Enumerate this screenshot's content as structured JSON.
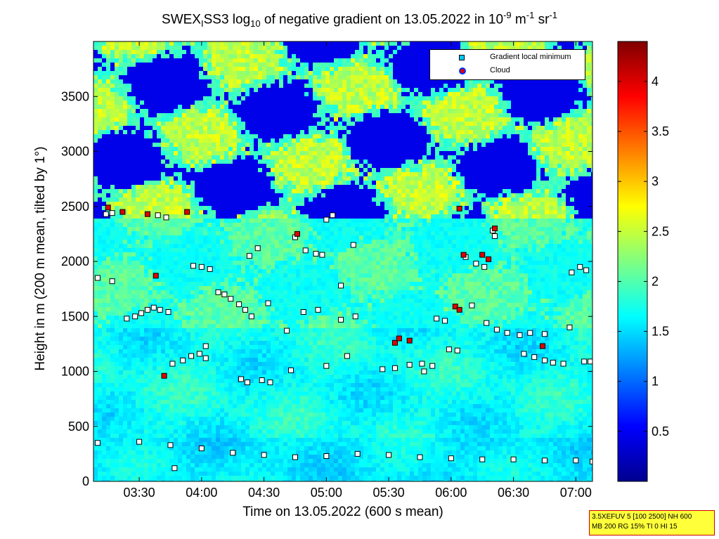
{
  "title": {
    "prefix": "SWEX",
    "sub1": "I",
    "mid": "SS3 log",
    "sub2": "10",
    "text": " of negative gradient on 13.05.2022 in 10",
    "sup1": "-9",
    "unit1": " m",
    "sup2": "-1",
    "unit2": " sr",
    "sup3": "-1"
  },
  "xlabel": "Time on 13.05.2022 (600 s mean)",
  "ylabel": "Height in m (200 m mean, tilted by 1°)",
  "legend": {
    "items": [
      {
        "label": "Gradient local minimum",
        "color": "#00c8ff"
      },
      {
        "label": "Cloud",
        "color": "#e00000"
      }
    ]
  },
  "infobox": {
    "line1": "3.5XEFUV 5 [100 2500] NH 600",
    "line2": "MB 200 RG 15% TI 0 HI 15"
  },
  "colors": {
    "background_field": "#0a1a8c",
    "colormap": [
      "#00008f",
      "#0000ff",
      "#0080ff",
      "#00ffff",
      "#80ff80",
      "#ffff00",
      "#ff8000",
      "#ff0000",
      "#800000"
    ]
  },
  "chart_data": {
    "type": "heatmap",
    "x": {
      "unit": "time",
      "min": "03:08",
      "max": "07:08",
      "ticks": [
        "03:30",
        "04:00",
        "04:30",
        "05:00",
        "05:30",
        "06:00",
        "06:30",
        "07:00"
      ]
    },
    "y": {
      "min": 0,
      "max": 4000,
      "ticks": [
        "0",
        "500",
        "1000",
        "1500",
        "2000",
        "2500",
        "3000",
        "3500"
      ]
    },
    "colorbar": {
      "min": 0,
      "max": 4.4,
      "ticks": [
        "0.5",
        "1",
        "1.5",
        "2",
        "2.5",
        "3",
        "3.5",
        "4"
      ]
    },
    "series": [
      {
        "name": "Gradient local minimum",
        "points": [
          [
            "03:10",
            1850
          ],
          [
            "03:17",
            1820
          ],
          [
            "03:14",
            2430
          ],
          [
            "03:17",
            2440
          ],
          [
            "03:24",
            1480
          ],
          [
            "03:28",
            1500
          ],
          [
            "03:31",
            1530
          ],
          [
            "03:34",
            1560
          ],
          [
            "03:37",
            1580
          ],
          [
            "03:40",
            1560
          ],
          [
            "03:44",
            1540
          ],
          [
            "03:39",
            2420
          ],
          [
            "03:43",
            2400
          ],
          [
            "03:46",
            1070
          ],
          [
            "03:51",
            1100
          ],
          [
            "03:55",
            1140
          ],
          [
            "03:59",
            1160
          ],
          [
            "04:02",
            1120
          ],
          [
            "03:56",
            1960
          ],
          [
            "04:00",
            1950
          ],
          [
            "04:04",
            1930
          ],
          [
            "04:02",
            1230
          ],
          [
            "04:08",
            1720
          ],
          [
            "04:11",
            1700
          ],
          [
            "04:14",
            1660
          ],
          [
            "04:18",
            1610
          ],
          [
            "04:21",
            1560
          ],
          [
            "04:24",
            1500
          ],
          [
            "04:19",
            930
          ],
          [
            "04:22",
            900
          ],
          [
            "04:29",
            920
          ],
          [
            "04:33",
            900
          ],
          [
            "04:23",
            2050
          ],
          [
            "04:27",
            2120
          ],
          [
            "04:32",
            1620
          ],
          [
            "04:45",
            2220
          ],
          [
            "04:50",
            2100
          ],
          [
            "04:55",
            2070
          ],
          [
            "04:58",
            2060
          ],
          [
            "04:41",
            1370
          ],
          [
            "04:49",
            1540
          ],
          [
            "04:56",
            1560
          ],
          [
            "05:00",
            2380
          ],
          [
            "05:03",
            2420
          ],
          [
            "05:07",
            1470
          ],
          [
            "05:14",
            1500
          ],
          [
            "05:07",
            1780
          ],
          [
            "05:13",
            2150
          ],
          [
            "04:43",
            1010
          ],
          [
            "05:00",
            1050
          ],
          [
            "05:10",
            1140
          ],
          [
            "05:27",
            1020
          ],
          [
            "05:33",
            1030
          ],
          [
            "05:40",
            1060
          ],
          [
            "05:46",
            1070
          ],
          [
            "05:51",
            1050
          ],
          [
            "05:47",
            1000
          ],
          [
            "05:53",
            1480
          ],
          [
            "05:57",
            1460
          ],
          [
            "05:59",
            1200
          ],
          [
            "06:03",
            1190
          ],
          [
            "06:07",
            2040
          ],
          [
            "06:12",
            1980
          ],
          [
            "06:16",
            1950
          ],
          [
            "06:20",
            2280
          ],
          [
            "06:21",
            2230
          ],
          [
            "06:10",
            1600
          ],
          [
            "06:17",
            1440
          ],
          [
            "06:22",
            1380
          ],
          [
            "06:27",
            1350
          ],
          [
            "06:33",
            1330
          ],
          [
            "06:35",
            1160
          ],
          [
            "06:40",
            1130
          ],
          [
            "06:45",
            1100
          ],
          [
            "06:49",
            1080
          ],
          [
            "06:54",
            1070
          ],
          [
            "06:38",
            1350
          ],
          [
            "06:45",
            1340
          ],
          [
            "06:57",
            1400
          ],
          [
            "06:58",
            1900
          ],
          [
            "07:02",
            1950
          ],
          [
            "07:05",
            1920
          ],
          [
            "07:04",
            1090
          ],
          [
            "07:07",
            1090
          ],
          [
            "03:10",
            350
          ],
          [
            "03:30",
            360
          ],
          [
            "03:45",
            330
          ],
          [
            "04:00",
            300
          ],
          [
            "04:15",
            260
          ],
          [
            "04:30",
            240
          ],
          [
            "04:45",
            220
          ],
          [
            "05:00",
            230
          ],
          [
            "05:15",
            250
          ],
          [
            "05:30",
            240
          ],
          [
            "05:45",
            220
          ],
          [
            "06:00",
            210
          ],
          [
            "06:15",
            200
          ],
          [
            "06:30",
            200
          ],
          [
            "06:45",
            190
          ],
          [
            "07:00",
            190
          ],
          [
            "07:08",
            180
          ],
          [
            "03:47",
            120
          ]
        ]
      },
      {
        "name": "Cloud",
        "points": [
          [
            "03:15",
            2490
          ],
          [
            "03:22",
            2450
          ],
          [
            "03:34",
            2430
          ],
          [
            "03:38",
            1870
          ],
          [
            "03:42",
            960
          ],
          [
            "03:53",
            2450
          ],
          [
            "04:46",
            2250
          ],
          [
            "05:33",
            1260
          ],
          [
            "05:35",
            1300
          ],
          [
            "05:40",
            1280
          ],
          [
            "06:02",
            1590
          ],
          [
            "06:04",
            1560
          ],
          [
            "06:06",
            2060
          ],
          [
            "06:15",
            2060
          ],
          [
            "06:18",
            2020
          ],
          [
            "06:21",
            2300
          ],
          [
            "06:44",
            1230
          ],
          [
            "06:04",
            2480
          ]
        ]
      }
    ]
  }
}
